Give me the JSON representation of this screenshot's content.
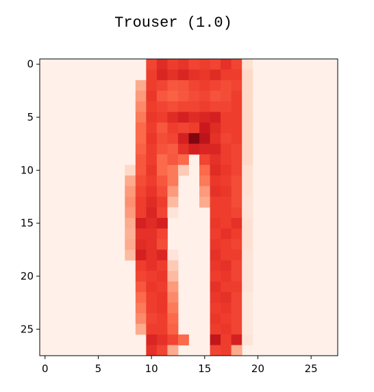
{
  "chart_data": {
    "type": "heatmap",
    "title": "Trouser (1.0)",
    "colormap": "Reds",
    "vmin": 0,
    "vmax": 1,
    "rows": 28,
    "cols": 28,
    "xlim": [
      -0.5,
      27.5
    ],
    "ylim": [
      27.5,
      -0.5
    ],
    "x_ticks": [
      0,
      5,
      10,
      15,
      20,
      25
    ],
    "y_ticks": [
      0,
      5,
      10,
      15,
      20,
      25
    ],
    "x_tick_labels": [
      "0",
      "5",
      "10",
      "15",
      "20",
      "25"
    ],
    "y_tick_labels": [
      "0",
      "5",
      "10",
      "15",
      "20",
      "25"
    ],
    "grid": false,
    "background_value": 0.03,
    "pixels": [
      [
        0,
        10,
        0.6
      ],
      [
        0,
        11,
        0.68
      ],
      [
        0,
        12,
        0.62
      ],
      [
        0,
        13,
        0.65
      ],
      [
        0,
        14,
        0.6
      ],
      [
        0,
        15,
        0.62
      ],
      [
        0,
        16,
        0.6
      ],
      [
        0,
        17,
        0.66
      ],
      [
        0,
        18,
        0.6
      ],
      [
        0,
        19,
        0.12
      ],
      [
        1,
        10,
        0.62
      ],
      [
        1,
        11,
        0.7
      ],
      [
        1,
        12,
        0.66
      ],
      [
        1,
        13,
        0.7
      ],
      [
        1,
        14,
        0.66
      ],
      [
        1,
        15,
        0.64
      ],
      [
        1,
        16,
        0.68
      ],
      [
        1,
        17,
        0.62
      ],
      [
        1,
        18,
        0.62
      ],
      [
        1,
        19,
        0.15
      ],
      [
        2,
        9,
        0.3
      ],
      [
        2,
        10,
        0.62
      ],
      [
        2,
        11,
        0.6
      ],
      [
        2,
        12,
        0.55
      ],
      [
        2,
        13,
        0.56
      ],
      [
        2,
        14,
        0.6
      ],
      [
        2,
        15,
        0.62
      ],
      [
        2,
        16,
        0.6
      ],
      [
        2,
        17,
        0.58
      ],
      [
        2,
        18,
        0.6
      ],
      [
        2,
        19,
        0.15
      ],
      [
        3,
        9,
        0.35
      ],
      [
        3,
        10,
        0.64
      ],
      [
        3,
        11,
        0.55
      ],
      [
        3,
        12,
        0.52
      ],
      [
        3,
        13,
        0.55
      ],
      [
        3,
        14,
        0.58
      ],
      [
        3,
        15,
        0.6
      ],
      [
        3,
        16,
        0.56
      ],
      [
        3,
        17,
        0.58
      ],
      [
        3,
        18,
        0.62
      ],
      [
        3,
        19,
        0.15
      ],
      [
        4,
        9,
        0.4
      ],
      [
        4,
        10,
        0.62
      ],
      [
        4,
        11,
        0.6
      ],
      [
        4,
        12,
        0.58
      ],
      [
        4,
        13,
        0.6
      ],
      [
        4,
        14,
        0.6
      ],
      [
        4,
        15,
        0.62
      ],
      [
        4,
        16,
        0.6
      ],
      [
        4,
        17,
        0.6
      ],
      [
        4,
        18,
        0.62
      ],
      [
        4,
        19,
        0.15
      ],
      [
        5,
        9,
        0.45
      ],
      [
        5,
        10,
        0.64
      ],
      [
        5,
        11,
        0.62
      ],
      [
        5,
        12,
        0.68
      ],
      [
        5,
        13,
        0.72
      ],
      [
        5,
        14,
        0.68
      ],
      [
        5,
        15,
        0.7
      ],
      [
        5,
        16,
        0.72
      ],
      [
        5,
        17,
        0.62
      ],
      [
        5,
        18,
        0.62
      ],
      [
        5,
        19,
        0.15
      ],
      [
        6,
        9,
        0.5
      ],
      [
        6,
        10,
        0.62
      ],
      [
        6,
        11,
        0.55
      ],
      [
        6,
        12,
        0.62
      ],
      [
        6,
        13,
        0.6
      ],
      [
        6,
        14,
        0.62
      ],
      [
        6,
        15,
        0.75
      ],
      [
        6,
        16,
        0.68
      ],
      [
        6,
        17,
        0.62
      ],
      [
        6,
        18,
        0.62
      ],
      [
        6,
        19,
        0.15
      ],
      [
        7,
        9,
        0.5
      ],
      [
        7,
        10,
        0.64
      ],
      [
        7,
        11,
        0.58
      ],
      [
        7,
        12,
        0.6
      ],
      [
        7,
        13,
        0.72
      ],
      [
        7,
        14,
        0.95
      ],
      [
        7,
        15,
        0.8
      ],
      [
        7,
        16,
        0.66
      ],
      [
        7,
        17,
        0.6
      ],
      [
        7,
        18,
        0.62
      ],
      [
        7,
        19,
        0.15
      ],
      [
        8,
        9,
        0.52
      ],
      [
        8,
        10,
        0.62
      ],
      [
        8,
        11,
        0.56
      ],
      [
        8,
        12,
        0.54
      ],
      [
        8,
        13,
        0.66
      ],
      [
        8,
        14,
        0.72
      ],
      [
        8,
        15,
        0.7
      ],
      [
        8,
        16,
        0.7
      ],
      [
        8,
        17,
        0.62
      ],
      [
        8,
        18,
        0.6
      ],
      [
        8,
        19,
        0.15
      ],
      [
        9,
        9,
        0.55
      ],
      [
        9,
        10,
        0.62
      ],
      [
        9,
        11,
        0.5
      ],
      [
        9,
        12,
        0.55
      ],
      [
        9,
        13,
        0.5
      ],
      [
        9,
        15,
        0.6
      ],
      [
        9,
        16,
        0.66
      ],
      [
        9,
        17,
        0.62
      ],
      [
        9,
        18,
        0.6
      ],
      [
        9,
        19,
        0.15
      ],
      [
        10,
        8,
        0.15
      ],
      [
        10,
        9,
        0.55
      ],
      [
        10,
        10,
        0.64
      ],
      [
        10,
        11,
        0.5
      ],
      [
        10,
        12,
        0.45
      ],
      [
        10,
        13,
        0.2
      ],
      [
        10,
        15,
        0.5
      ],
      [
        10,
        16,
        0.68
      ],
      [
        10,
        17,
        0.64
      ],
      [
        10,
        18,
        0.6
      ],
      [
        10,
        19,
        0.12
      ],
      [
        11,
        8,
        0.3
      ],
      [
        11,
        9,
        0.58
      ],
      [
        11,
        10,
        0.62
      ],
      [
        11,
        11,
        0.55
      ],
      [
        11,
        12,
        0.45
      ],
      [
        11,
        15,
        0.45
      ],
      [
        11,
        16,
        0.64
      ],
      [
        11,
        17,
        0.62
      ],
      [
        11,
        18,
        0.58
      ],
      [
        11,
        19,
        0.12
      ],
      [
        12,
        8,
        0.35
      ],
      [
        12,
        9,
        0.6
      ],
      [
        12,
        10,
        0.65
      ],
      [
        12,
        11,
        0.58
      ],
      [
        12,
        12,
        0.35
      ],
      [
        12,
        15,
        0.35
      ],
      [
        12,
        16,
        0.66
      ],
      [
        12,
        17,
        0.64
      ],
      [
        12,
        18,
        0.58
      ],
      [
        12,
        19,
        0.12
      ],
      [
        13,
        8,
        0.38
      ],
      [
        13,
        9,
        0.62
      ],
      [
        13,
        10,
        0.68
      ],
      [
        13,
        11,
        0.62
      ],
      [
        13,
        12,
        0.25
      ],
      [
        13,
        15,
        0.3
      ],
      [
        13,
        16,
        0.62
      ],
      [
        13,
        17,
        0.62
      ],
      [
        13,
        18,
        0.58
      ],
      [
        13,
        19,
        0.1
      ],
      [
        14,
        8,
        0.35
      ],
      [
        14,
        9,
        0.62
      ],
      [
        14,
        10,
        0.7
      ],
      [
        14,
        11,
        0.6
      ],
      [
        14,
        12,
        0.1
      ],
      [
        14,
        16,
        0.62
      ],
      [
        14,
        17,
        0.62
      ],
      [
        14,
        18,
        0.6
      ],
      [
        14,
        19,
        0.1
      ],
      [
        15,
        8,
        0.3
      ],
      [
        15,
        9,
        0.72
      ],
      [
        15,
        10,
        0.68
      ],
      [
        15,
        11,
        0.72
      ],
      [
        15,
        16,
        0.64
      ],
      [
        15,
        17,
        0.62
      ],
      [
        15,
        18,
        0.66
      ],
      [
        15,
        19,
        0.12
      ],
      [
        16,
        8,
        0.28
      ],
      [
        16,
        9,
        0.66
      ],
      [
        16,
        10,
        0.66
      ],
      [
        16,
        11,
        0.6
      ],
      [
        16,
        16,
        0.62
      ],
      [
        16,
        17,
        0.66
      ],
      [
        16,
        18,
        0.62
      ],
      [
        16,
        19,
        0.12
      ],
      [
        17,
        8,
        0.3
      ],
      [
        17,
        9,
        0.68
      ],
      [
        17,
        10,
        0.66
      ],
      [
        17,
        11,
        0.58
      ],
      [
        17,
        16,
        0.64
      ],
      [
        17,
        17,
        0.62
      ],
      [
        17,
        18,
        0.6
      ],
      [
        17,
        19,
        0.12
      ],
      [
        18,
        8,
        0.25
      ],
      [
        18,
        9,
        0.72
      ],
      [
        18,
        10,
        0.66
      ],
      [
        18,
        11,
        0.7
      ],
      [
        18,
        12,
        0.1
      ],
      [
        18,
        16,
        0.66
      ],
      [
        18,
        17,
        0.62
      ],
      [
        18,
        18,
        0.62
      ],
      [
        18,
        19,
        0.1
      ],
      [
        19,
        9,
        0.62
      ],
      [
        19,
        10,
        0.66
      ],
      [
        19,
        11,
        0.62
      ],
      [
        19,
        12,
        0.2
      ],
      [
        19,
        16,
        0.64
      ],
      [
        19,
        17,
        0.66
      ],
      [
        19,
        18,
        0.6
      ],
      [
        19,
        19,
        0.1
      ],
      [
        20,
        9,
        0.6
      ],
      [
        20,
        10,
        0.62
      ],
      [
        20,
        11,
        0.64
      ],
      [
        20,
        12,
        0.25
      ],
      [
        20,
        16,
        0.62
      ],
      [
        20,
        17,
        0.64
      ],
      [
        20,
        18,
        0.6
      ],
      [
        20,
        19,
        0.1
      ],
      [
        21,
        9,
        0.55
      ],
      [
        21,
        10,
        0.64
      ],
      [
        21,
        11,
        0.62
      ],
      [
        21,
        12,
        0.35
      ],
      [
        21,
        16,
        0.66
      ],
      [
        21,
        17,
        0.62
      ],
      [
        21,
        18,
        0.62
      ],
      [
        21,
        19,
        0.1
      ],
      [
        22,
        9,
        0.5
      ],
      [
        22,
        10,
        0.62
      ],
      [
        22,
        11,
        0.64
      ],
      [
        22,
        12,
        0.4
      ],
      [
        22,
        16,
        0.64
      ],
      [
        22,
        17,
        0.66
      ],
      [
        22,
        18,
        0.6
      ],
      [
        22,
        19,
        0.08
      ],
      [
        23,
        9,
        0.45
      ],
      [
        23,
        10,
        0.62
      ],
      [
        23,
        11,
        0.64
      ],
      [
        23,
        12,
        0.45
      ],
      [
        23,
        16,
        0.62
      ],
      [
        23,
        17,
        0.64
      ],
      [
        23,
        18,
        0.6
      ],
      [
        23,
        19,
        0.08
      ],
      [
        24,
        9,
        0.4
      ],
      [
        24,
        10,
        0.6
      ],
      [
        24,
        11,
        0.62
      ],
      [
        24,
        12,
        0.5
      ],
      [
        24,
        16,
        0.64
      ],
      [
        24,
        17,
        0.62
      ],
      [
        24,
        18,
        0.6
      ],
      [
        24,
        19,
        0.08
      ],
      [
        25,
        9,
        0.3
      ],
      [
        25,
        10,
        0.62
      ],
      [
        25,
        11,
        0.62
      ],
      [
        25,
        12,
        0.52
      ],
      [
        25,
        16,
        0.62
      ],
      [
        25,
        17,
        0.64
      ],
      [
        25,
        18,
        0.6
      ],
      [
        25,
        19,
        0.08
      ],
      [
        26,
        10,
        0.7
      ],
      [
        26,
        11,
        0.66
      ],
      [
        26,
        12,
        0.6
      ],
      [
        26,
        13,
        0.5
      ],
      [
        26,
        16,
        0.78
      ],
      [
        26,
        17,
        0.62
      ],
      [
        26,
        18,
        0.72
      ],
      [
        26,
        19,
        0.1
      ],
      [
        27,
        10,
        0.66
      ],
      [
        27,
        11,
        0.6
      ],
      [
        27,
        12,
        0.3
      ],
      [
        27,
        16,
        0.6
      ],
      [
        27,
        17,
        0.62
      ],
      [
        27,
        18,
        0.3
      ]
    ]
  }
}
